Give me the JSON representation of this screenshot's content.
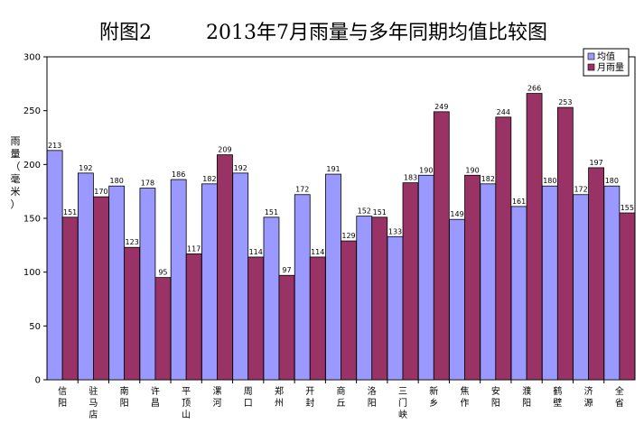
{
  "title": {
    "part1": "附图2",
    "part2": "2013年7月雨量与多年同期均值比较图"
  },
  "chart_data": {
    "type": "bar",
    "title": "附图2　　2013年7月雨量与多年同期均值比较图",
    "ylabel": "雨量（毫米）",
    "xlabel": "",
    "ylim": [
      0,
      300
    ],
    "yticks": [
      0,
      50,
      100,
      150,
      200,
      250,
      300
    ],
    "grid": false,
    "legend_position": "top-right",
    "categories": [
      "信阳",
      "驻马店",
      "南阳",
      "许昌",
      "平顶山",
      "漯河",
      "周口",
      "郑州",
      "开封",
      "商丘",
      "洛阳",
      "三门峡",
      "新乡",
      "焦作",
      "安阳",
      "濮阳",
      "鹤壁",
      "济源",
      "全省"
    ],
    "series": [
      {
        "name": "均值",
        "color": "#9999ff",
        "values": [
          213,
          192,
          180,
          178,
          186,
          182,
          192,
          151,
          172,
          191,
          152,
          133,
          190,
          149,
          182,
          161,
          180,
          172,
          180
        ]
      },
      {
        "name": "月雨量",
        "color": "#993366",
        "values": [
          151,
          170,
          123,
          95,
          117,
          209,
          114,
          97,
          114,
          129,
          151,
          183,
          249,
          190,
          244,
          266,
          253,
          197,
          155
        ]
      }
    ]
  }
}
